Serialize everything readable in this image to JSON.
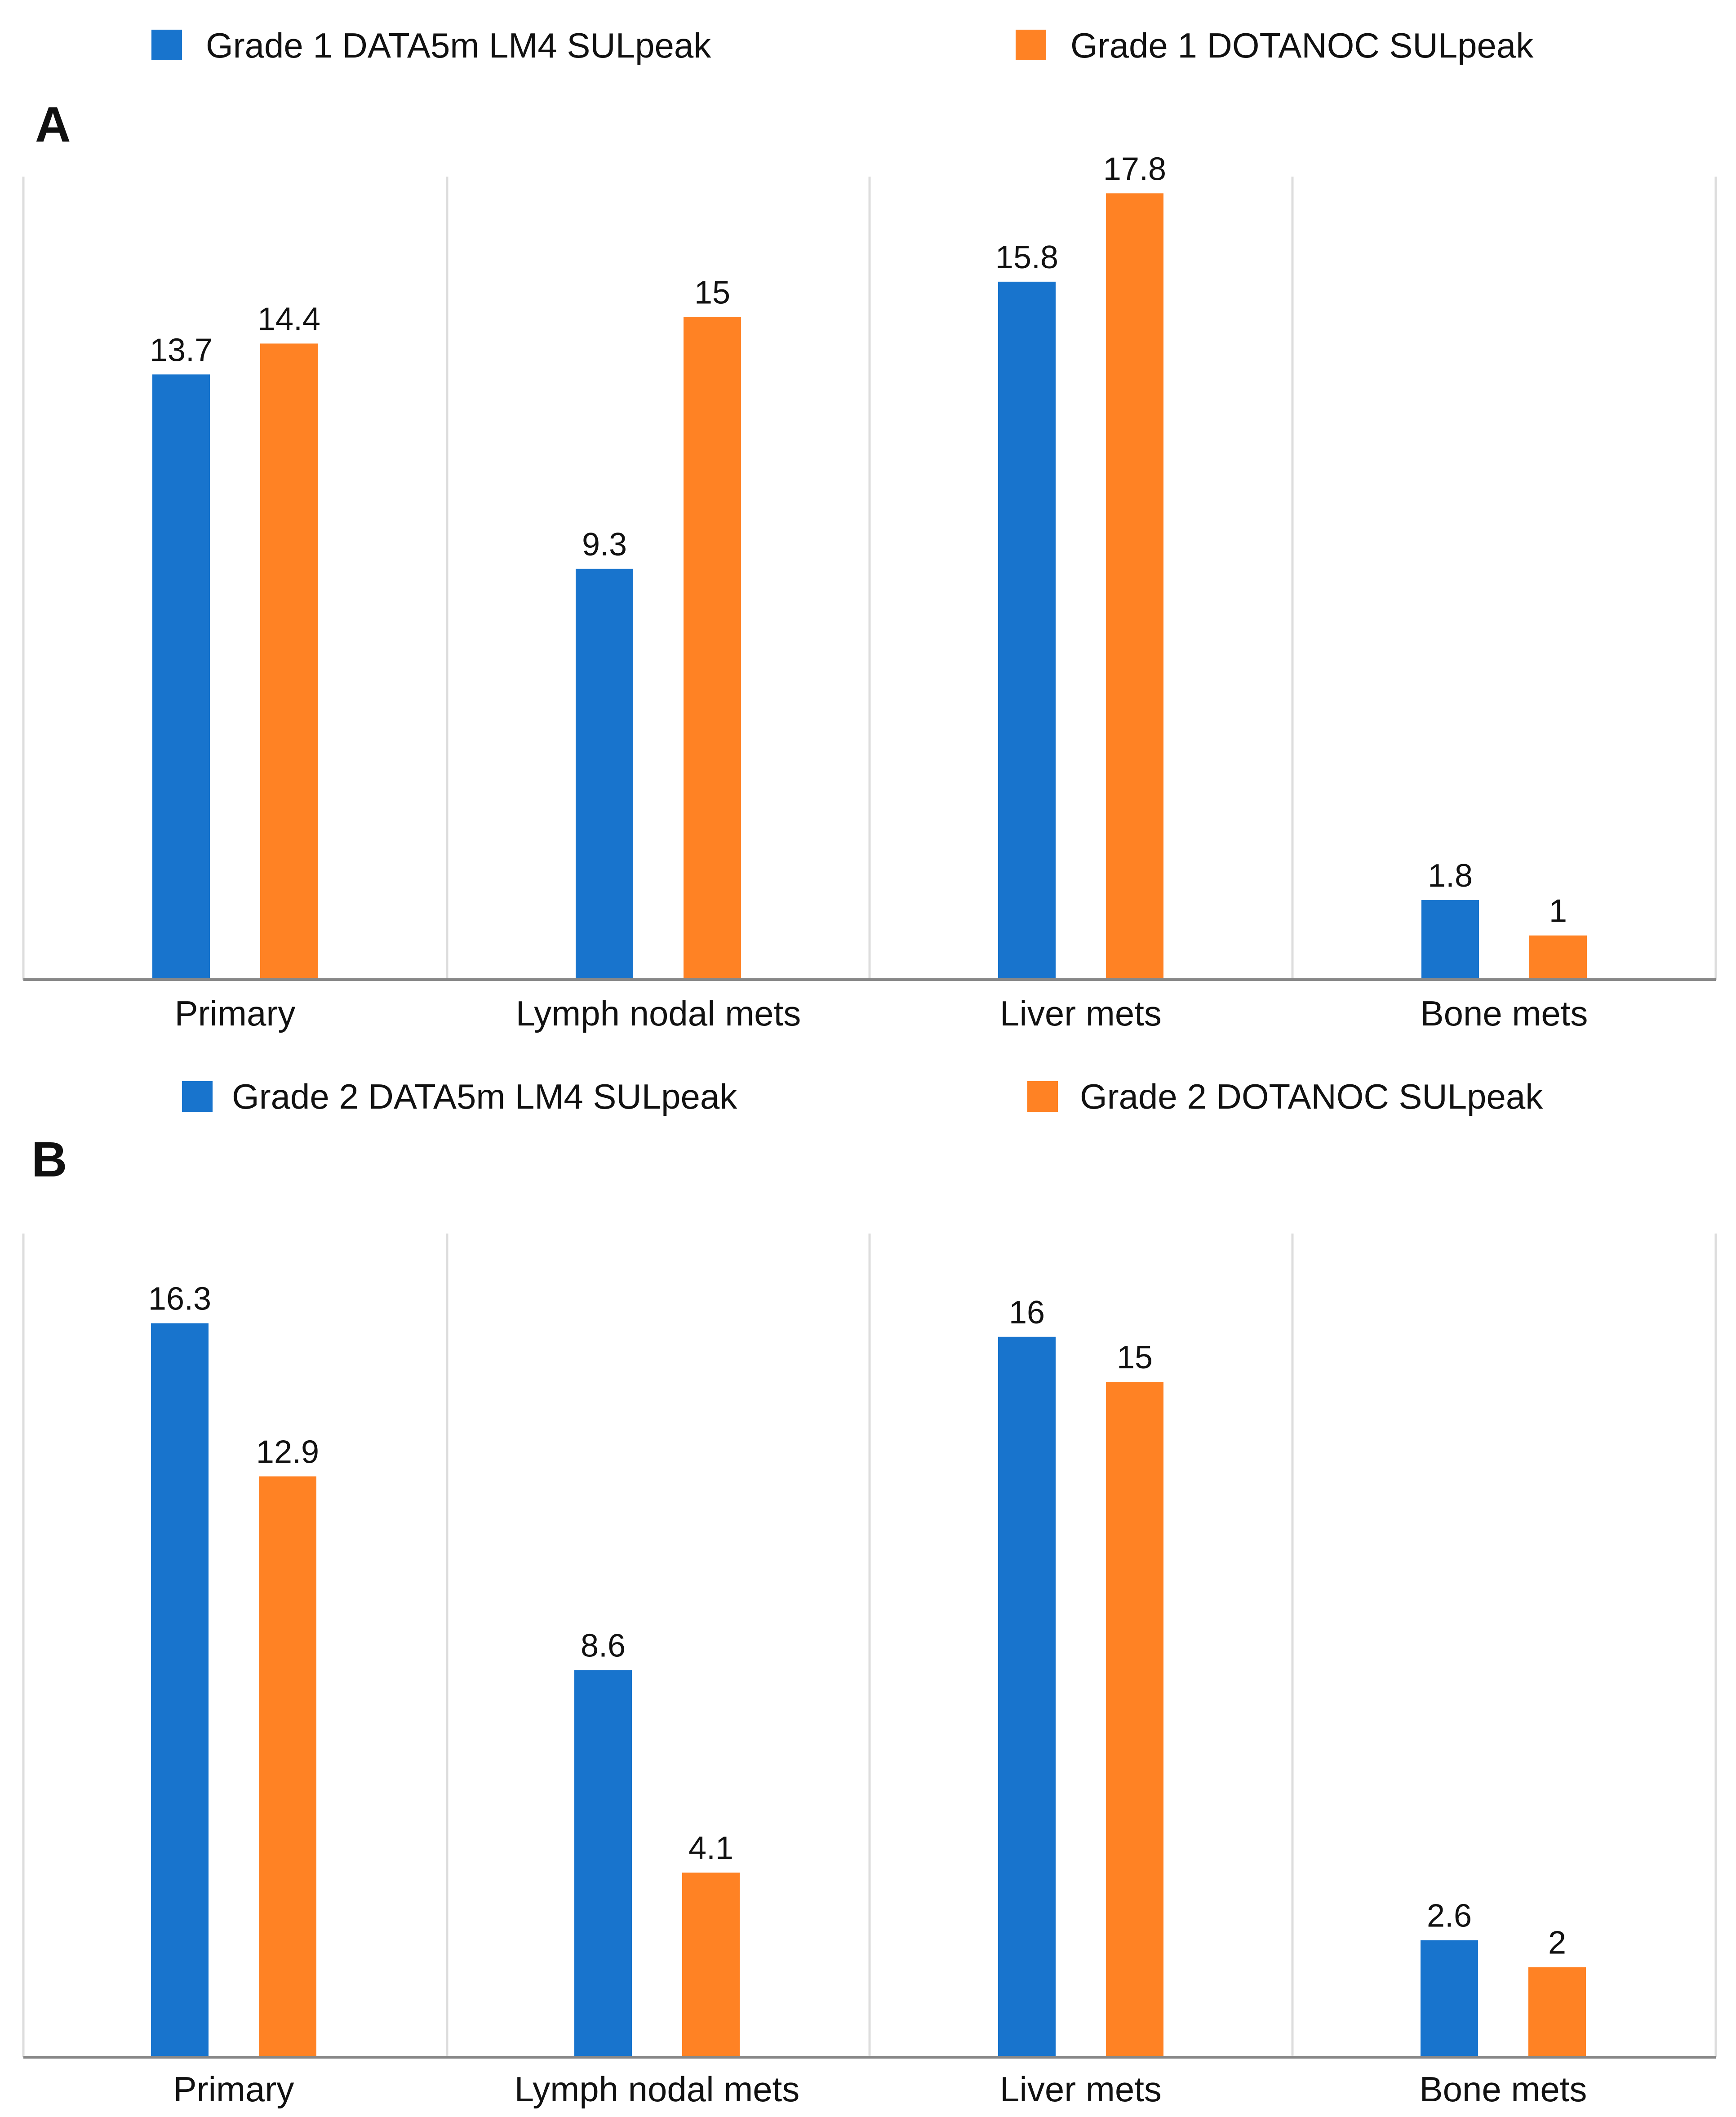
{
  "chart_data": [
    {
      "type": "bar",
      "panel_label": "A",
      "categories": [
        "Primary",
        "Lymph nodal mets",
        "Liver mets",
        "Bone mets"
      ],
      "series": [
        {
          "name": "Grade 1 DATA5m LM4 SULpeak",
          "color": "#1874CD",
          "values": [
            13.7,
            9.3,
            15.8,
            1.8
          ]
        },
        {
          "name": "Grade 1 DOTANOC SULpeak",
          "color": "#FF8224",
          "values": [
            14.4,
            15,
            17.8,
            1
          ]
        }
      ],
      "value_labels": [
        [
          "13.7",
          "9.3",
          "15.8",
          "1.8"
        ],
        [
          "14.4",
          "15",
          "17.8",
          "1"
        ]
      ],
      "ylim": [
        0,
        18
      ],
      "grid": "vertical separators",
      "legend_position": "top"
    },
    {
      "type": "bar",
      "panel_label": "B",
      "categories": [
        "Primary",
        "Lymph nodal mets",
        "Liver mets",
        "Bone mets"
      ],
      "series": [
        {
          "name": "Grade 2 DATA5m LM4 SULpeak",
          "color": "#1874CD",
          "values": [
            16.3,
            8.6,
            16,
            2.6
          ]
        },
        {
          "name": "Grade 2 DOTANOC SULpeak",
          "color": "#FF8224",
          "values": [
            12.9,
            4.1,
            15,
            2
          ]
        }
      ],
      "value_labels": [
        [
          "16.3",
          "8.6",
          "16",
          "2.6"
        ],
        [
          "12.9",
          "4.1",
          "15",
          "2"
        ]
      ],
      "ylim": [
        0,
        16.3
      ],
      "grid": "vertical separators",
      "legend_position": "top"
    }
  ]
}
